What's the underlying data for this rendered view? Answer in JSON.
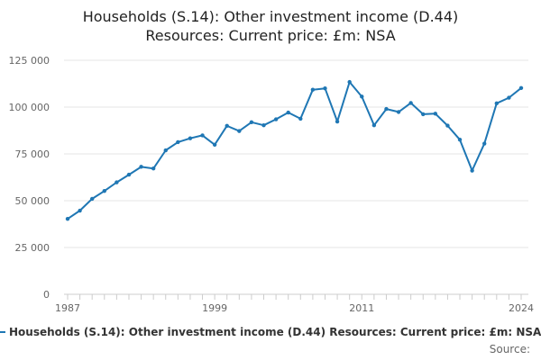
{
  "chart_data": {
    "type": "line",
    "title": "Households (S.14): Other investment income (D.44)",
    "subtitle": "Resources: Current price: £m: NSA",
    "xlabel": "",
    "ylabel": "",
    "x": [
      1987,
      1988,
      1989,
      1990,
      1991,
      1992,
      1993,
      1994,
      1995,
      1996,
      1997,
      1998,
      1999,
      2000,
      2001,
      2002,
      2003,
      2004,
      2005,
      2006,
      2007,
      2008,
      2009,
      2010,
      2011,
      2012,
      2013,
      2014,
      2015,
      2016,
      2017,
      2018,
      2019,
      2020,
      2021,
      2022,
      2023,
      2024
    ],
    "series": [
      {
        "name": "Households (S.14): Other investment income (D.44) Resources: Current price: £m: NSA",
        "color": "#1f77b4",
        "values": [
          40300,
          44700,
          51000,
          55200,
          59800,
          63900,
          68100,
          67200,
          76900,
          81300,
          83300,
          84900,
          79900,
          90000,
          87200,
          91900,
          90300,
          93500,
          97100,
          93800,
          109300,
          110000,
          92300,
          113400,
          105600,
          90300,
          99000,
          97400,
          102200,
          96200,
          96500,
          90100,
          82600,
          66100,
          80500,
          102000,
          105000,
          110200
        ]
      }
    ],
    "x_ticks": [
      "1987",
      "1999",
      "2011",
      "2024"
    ],
    "y_ticks": [
      "0",
      "25 000",
      "50 000",
      "75 000",
      "100 000",
      "125 000"
    ],
    "y_tick_values": [
      0,
      25000,
      50000,
      75000,
      100000,
      125000
    ],
    "ylim": [
      0,
      125000
    ],
    "xlim": [
      1987,
      2024
    ],
    "grid": "horizontal",
    "legend_position": "bottom"
  },
  "legend_label": "Households (S.14): Other investment income (D.44) Resources: Current price: £m: NSA",
  "source_label": "Source:"
}
